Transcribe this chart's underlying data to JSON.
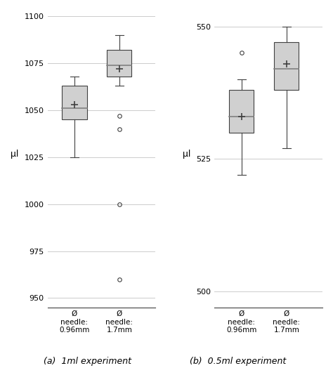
{
  "left": {
    "title": "(a)  1ml experiment",
    "ylabel": "µl",
    "ylim": [
      945,
      1103
    ],
    "yticks": [
      950,
      975,
      1000,
      1025,
      1050,
      1075,
      1100
    ],
    "categories": [
      "Ø\nneedle:\n0.96mm",
      "Ø\nneedle:\n1.7mm"
    ],
    "boxes": [
      {
        "q1": 1045,
        "median": 1051,
        "q3": 1063,
        "whislo": 1025,
        "whishi": 1068,
        "mean": 1053,
        "fliers": []
      },
      {
        "q1": 1068,
        "median": 1074,
        "q3": 1082,
        "whislo": 1063,
        "whishi": 1090,
        "mean": 1072,
        "fliers": [
          1047,
          1040,
          1000,
          960
        ]
      }
    ]
  },
  "right": {
    "title": "(b)  0.5ml experiment",
    "ylabel": "µl",
    "ylim": [
      497,
      553
    ],
    "yticks": [
      500,
      510,
      520,
      525,
      530,
      540,
      550
    ],
    "yticks_display": [
      500,
      525,
      550
    ],
    "categories": [
      "Ø\nneedle:\n0.96mm",
      "Ø\nneedle:\n1.7mm"
    ],
    "boxes": [
      {
        "q1": 530,
        "median": 533,
        "q3": 538,
        "whislo": 522,
        "whishi": 540,
        "mean": 533,
        "fliers": [
          545
        ]
      },
      {
        "q1": 538,
        "median": 542,
        "q3": 547,
        "whislo": 527,
        "whishi": 550,
        "mean": 543,
        "fliers": []
      }
    ]
  },
  "box_color": "#d0d0d0",
  "median_color": "#808080",
  "whisker_color": "#404040",
  "flier_color": "#404040",
  "mean_marker": "+",
  "mean_color": "#404040",
  "background_color": "#ffffff",
  "grid_color": "#cccccc"
}
